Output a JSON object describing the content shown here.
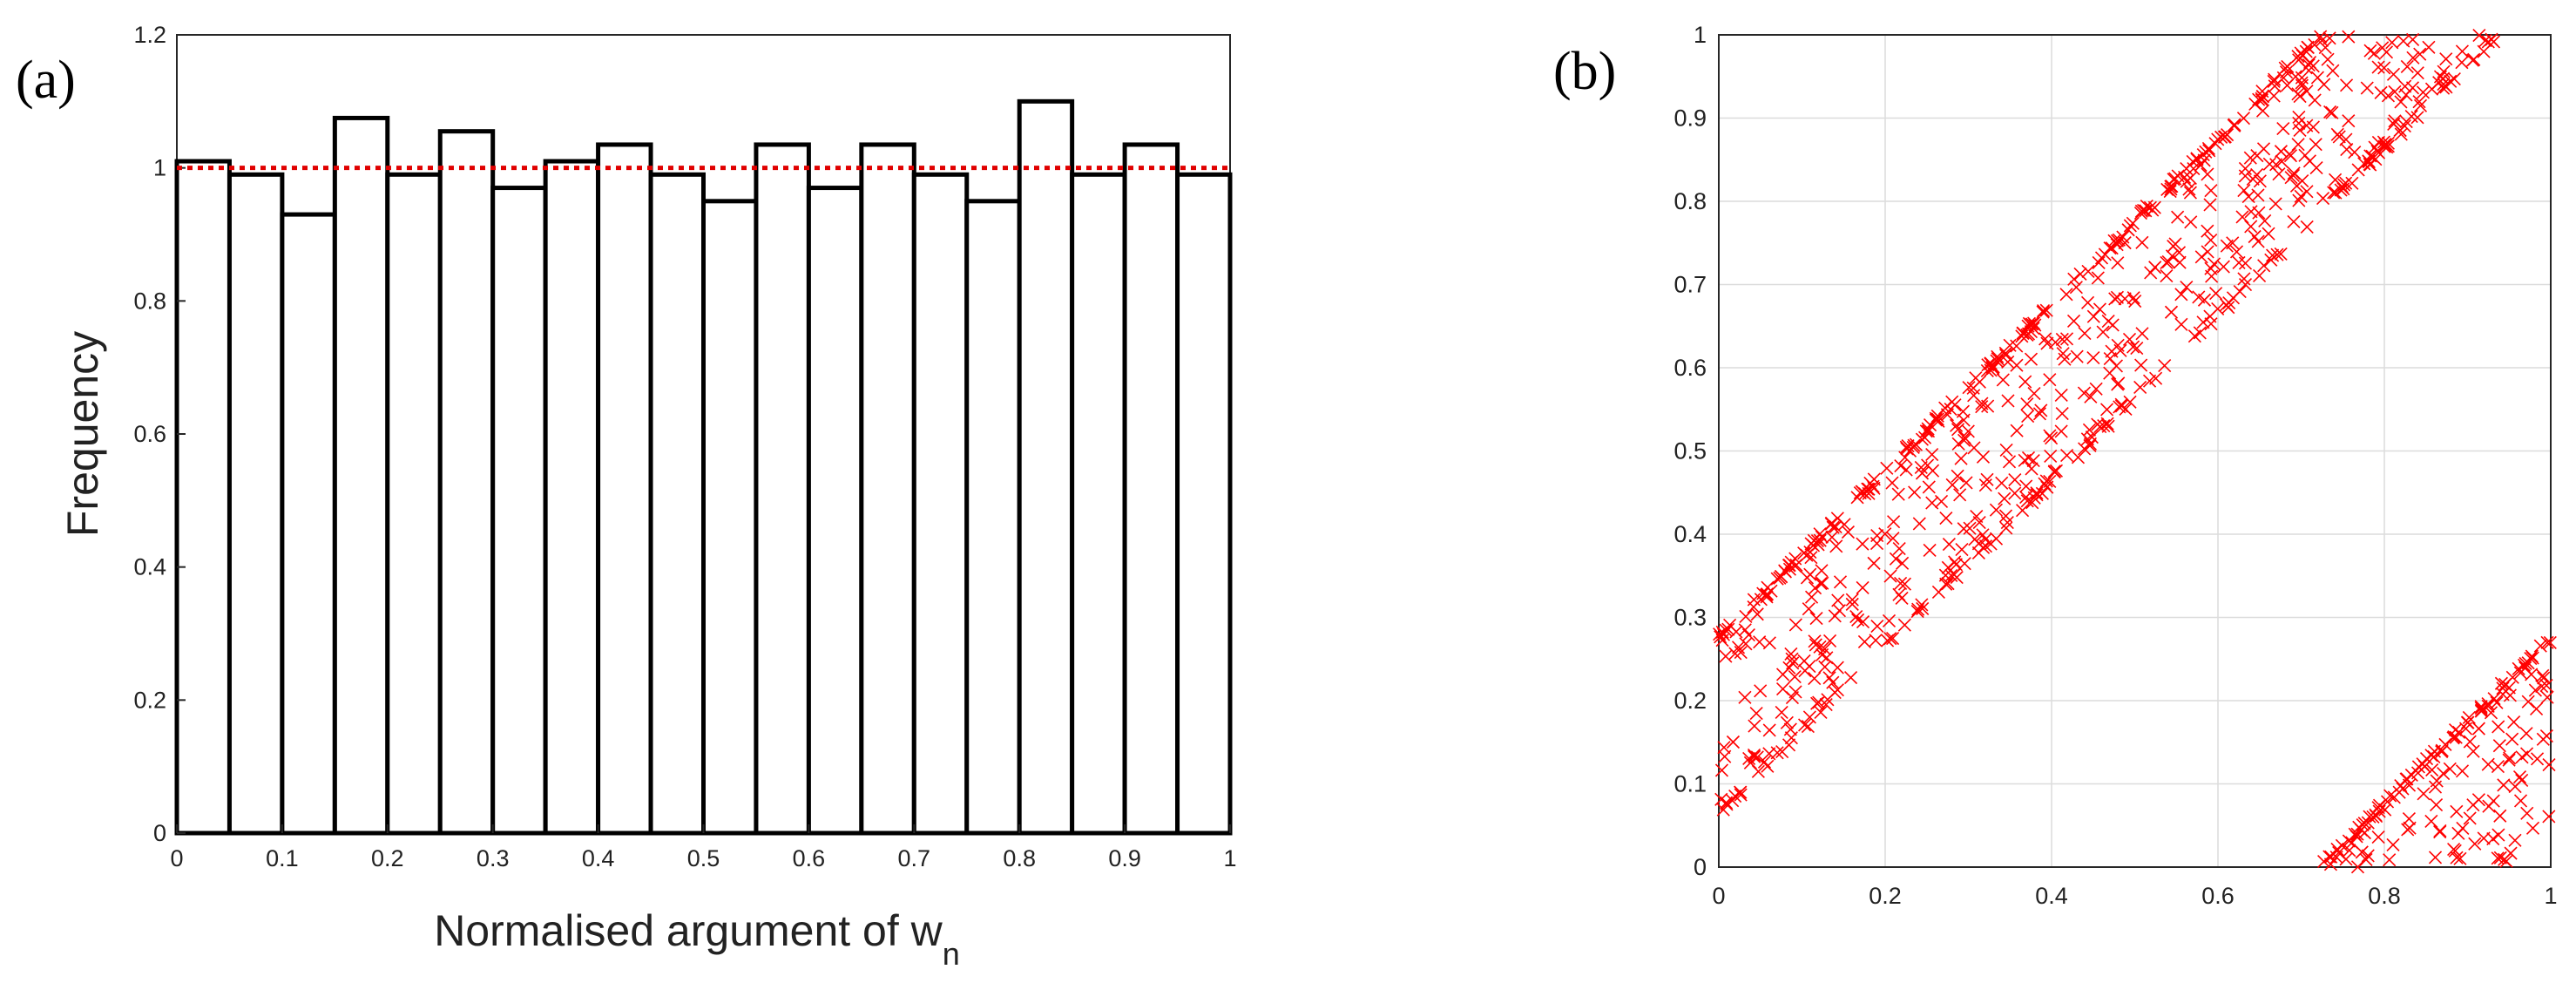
{
  "chart_data": [
    {
      "type": "bar",
      "panel_label": "(a)",
      "xlabel": "Normalised argument of w",
      "xlabel_subscript": "n",
      "ylabel": "Frequency",
      "xlim": [
        0,
        1
      ],
      "ylim": [
        0,
        1.2
      ],
      "xticks": [
        "0",
        "0.1",
        "0.2",
        "0.3",
        "0.4",
        "0.5",
        "0.6",
        "0.7",
        "0.8",
        "0.9",
        "1"
      ],
      "yticks": [
        "0",
        "0.2",
        "0.4",
        "0.6",
        "0.8",
        "1",
        "1.2"
      ],
      "bin_width": 0.05,
      "bin_starts": [
        0,
        0.05,
        0.1,
        0.15,
        0.2,
        0.25,
        0.3,
        0.35,
        0.4,
        0.45,
        0.5,
        0.55,
        0.6,
        0.65,
        0.7,
        0.75,
        0.8,
        0.85,
        0.9,
        0.95
      ],
      "values": [
        1.01,
        0.99,
        0.93,
        1.075,
        0.99,
        1.055,
        0.97,
        1.01,
        1.035,
        0.99,
        0.95,
        1.035,
        0.97,
        1.035,
        0.99,
        0.95,
        1.1,
        0.99,
        1.035,
        0.99
      ],
      "reference_line": 1.0,
      "bar_color": "#000000",
      "reference_color": "#e00000"
    },
    {
      "type": "scatter",
      "panel_label": "(b)",
      "xlim": [
        0,
        1
      ],
      "ylim": [
        0,
        1
      ],
      "grid": true,
      "xticks": [
        "0",
        "0.2",
        "0.4",
        "0.6",
        "0.8",
        "1"
      ],
      "yticks": [
        "0",
        "0.1",
        "0.2",
        "0.3",
        "0.4",
        "0.5",
        "0.6",
        "0.7",
        "0.8",
        "0.9",
        "1"
      ],
      "marker": "x",
      "marker_color": "#ff0000",
      "band_offsets": [
        0.28,
        0.06,
        0.0
      ],
      "band_slope": 1.0,
      "num_points": 900
    }
  ]
}
